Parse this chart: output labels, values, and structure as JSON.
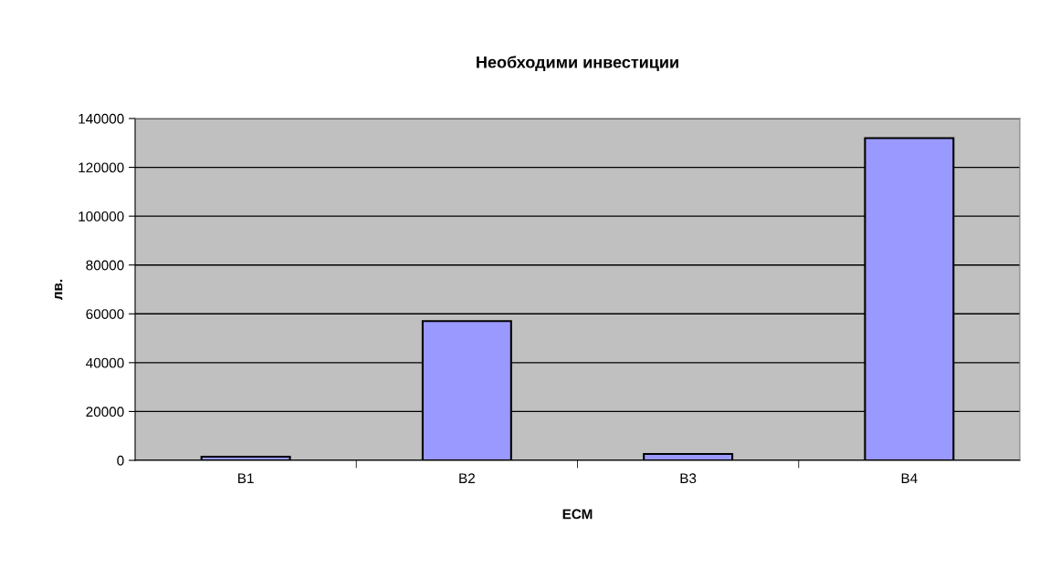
{
  "chart_data": {
    "type": "bar",
    "title": "Необходими инвестиции",
    "xlabel": "ЕСМ",
    "ylabel": "лв.",
    "categories": [
      "B1",
      "B2",
      "B3",
      "B4"
    ],
    "values": [
      1500,
      57000,
      2600,
      132000
    ],
    "color": "#9999ff",
    "ylim": [
      0,
      140000
    ],
    "yticks": [
      0,
      20000,
      40000,
      60000,
      80000,
      100000,
      120000,
      140000
    ],
    "grid": "y",
    "legend": false
  }
}
